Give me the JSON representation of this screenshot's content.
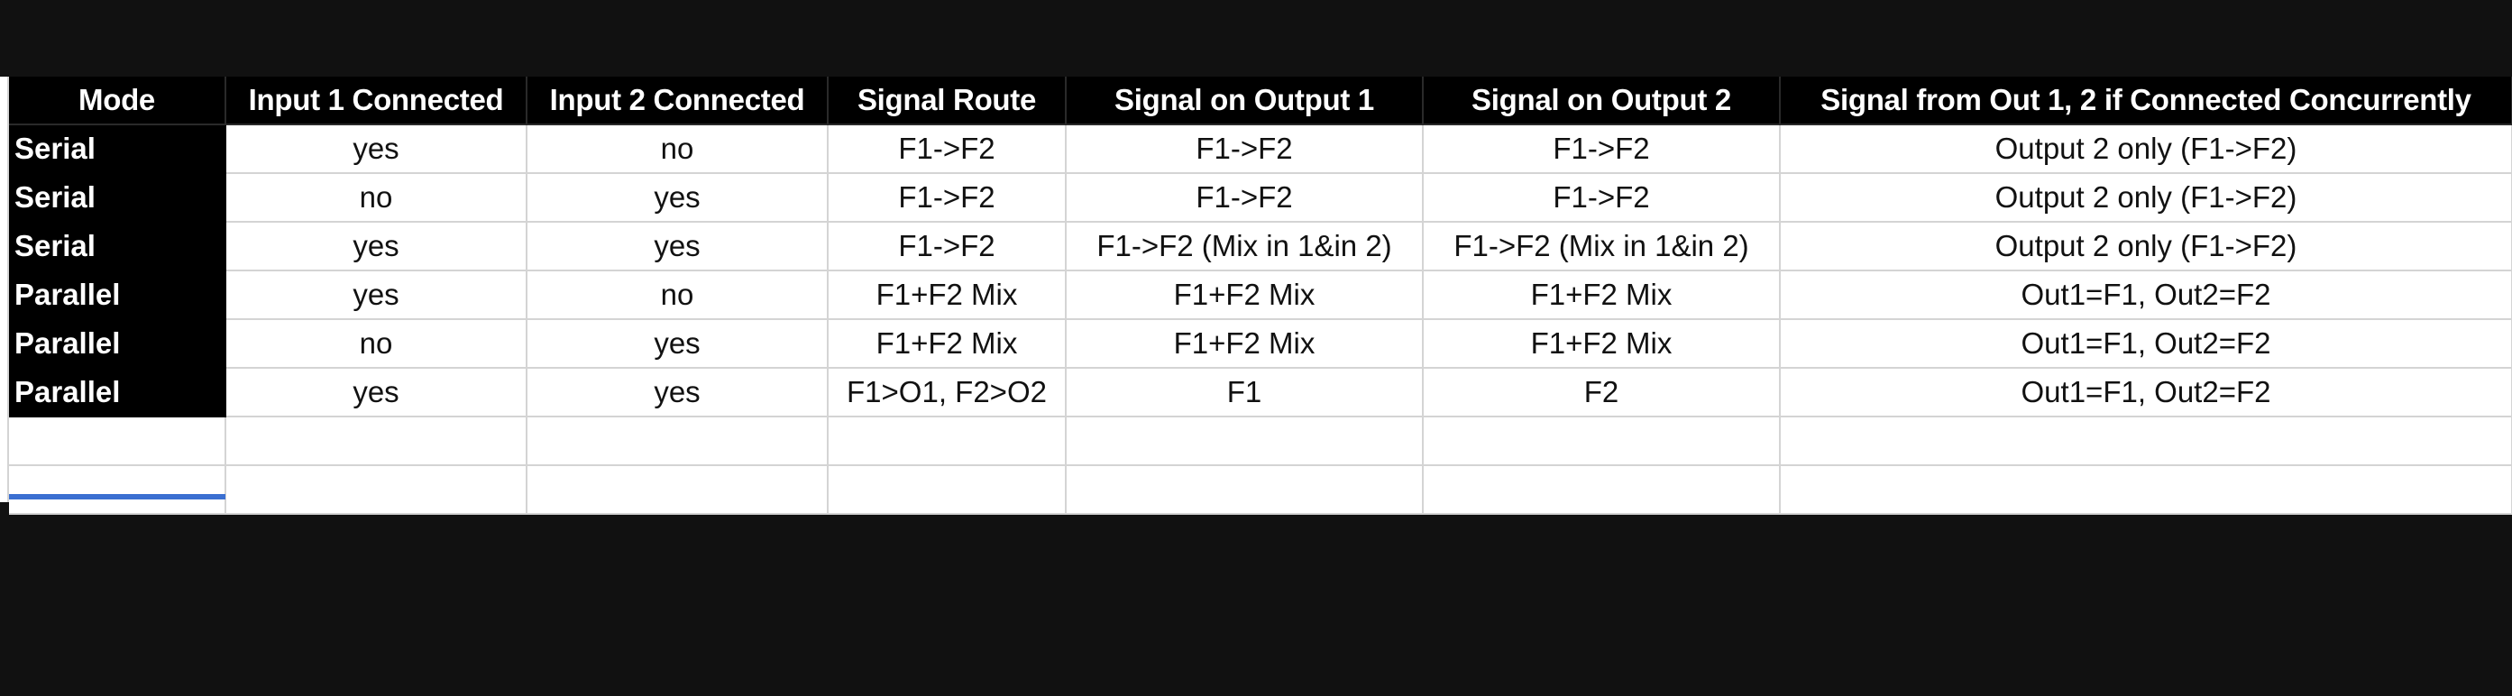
{
  "table": {
    "headers": [
      "Mode",
      "Input 1 Connected",
      "Input 2 Connected",
      "Signal Route",
      "Signal on Output 1",
      "Signal on Output 2",
      "Signal from Out 1, 2 if Connected Concurrently"
    ],
    "rows": [
      [
        "Serial",
        "yes",
        "no",
        "F1->F2",
        "F1->F2",
        "F1->F2",
        "Output 2 only (F1->F2)"
      ],
      [
        "Serial",
        "no",
        "yes",
        "F1->F2",
        "F1->F2",
        "F1->F2",
        "Output 2 only (F1->F2)"
      ],
      [
        "Serial",
        "yes",
        "yes",
        "F1->F2",
        "F1->F2 (Mix in 1&in 2)",
        "F1->F2 (Mix in 1&in 2)",
        "Output 2 only (F1->F2)"
      ],
      [
        "Parallel",
        "yes",
        "no",
        "F1+F2 Mix",
        "F1+F2 Mix",
        "F1+F2 Mix",
        "Out1=F1, Out2=F2"
      ],
      [
        "Parallel",
        "no",
        "yes",
        "F1+F2 Mix",
        "F1+F2 Mix",
        "F1+F2 Mix",
        "Out1=F1, Out2=F2"
      ],
      [
        "Parallel",
        "yes",
        "yes",
        "F1>O1, F2>O2",
        "F1",
        "F2",
        "Out1=F1, Out2=F2"
      ]
    ],
    "empty_rows": 2
  },
  "colors": {
    "background": "#111111",
    "header_bg": "#000000",
    "header_text": "#ffffff",
    "gridline": "#d4d4d4",
    "selection": "#3b6fd1"
  }
}
